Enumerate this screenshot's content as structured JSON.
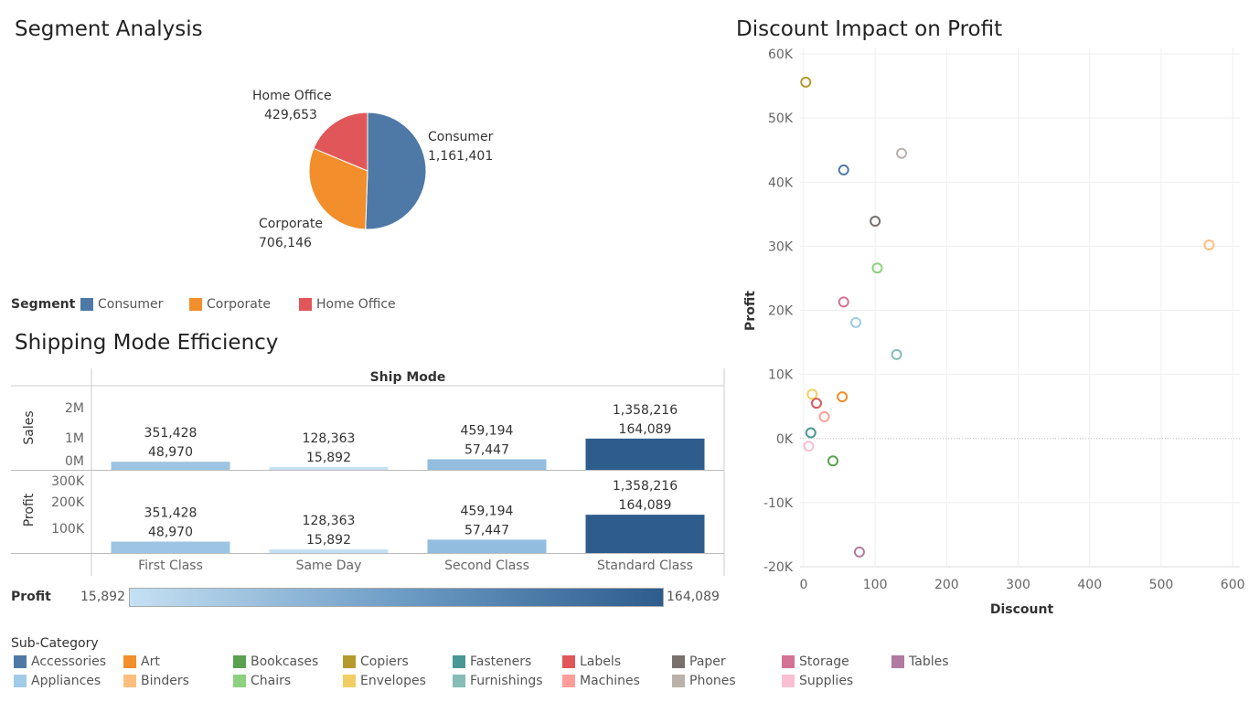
{
  "segment": {
    "title": "Segment Analysis",
    "legend_title": "Segment",
    "colors": {
      "Consumer": "#4e79a7",
      "Corporate": "#f28e2b",
      "Home Office": "#e15759"
    }
  },
  "shipping": {
    "title": "Shipping Mode Efficiency",
    "header": "Ship Mode",
    "row_labels": [
      "Sales",
      "Profit"
    ],
    "color_legend_title": "Profit",
    "color_min": "15,892",
    "color_max": "164,089"
  },
  "scatter": {
    "title": "Discount Impact on Profit"
  },
  "subcategory": {
    "title": "Sub-Category"
  },
  "chart_data": [
    {
      "type": "pie",
      "categories": [
        "Consumer",
        "Corporate",
        "Home Office"
      ],
      "values": [
        1161401,
        706146,
        429653
      ],
      "labels": [
        {
          "name": "Consumer",
          "value": "1,161,401"
        },
        {
          "name": "Corporate",
          "value": "706,146"
        },
        {
          "name": "Home Office",
          "value": "429,653"
        }
      ]
    },
    {
      "type": "bar",
      "categories": [
        "First Class",
        "Same Day",
        "Second Class",
        "Standard Class"
      ],
      "series": [
        {
          "name": "Sales",
          "values": [
            351428,
            128363,
            459194,
            1358216
          ],
          "ticks": [
            "2M",
            "1M",
            "0M"
          ],
          "tick_values": [
            2000000,
            1000000,
            0
          ]
        },
        {
          "name": "Profit",
          "values": [
            48970,
            15892,
            57447,
            164089
          ],
          "ticks": [
            "300K",
            "200K",
            "100K"
          ],
          "tick_values": [
            300000,
            200000,
            100000
          ]
        }
      ],
      "sales_labels": [
        "351,428",
        "128,363",
        "459,194",
        "1,358,216"
      ],
      "profit_labels": [
        "48,970",
        "15,892",
        "57,447",
        "164,089"
      ],
      "color_by": "Profit"
    },
    {
      "type": "scatter",
      "xlabel": "Discount",
      "ylabel": "Profit",
      "xlim": [
        -5,
        610
      ],
      "ylim": [
        -20000,
        61000
      ],
      "xticks": [
        0,
        100,
        200,
        300,
        400,
        500,
        600
      ],
      "yticks": [
        60000,
        50000,
        40000,
        30000,
        20000,
        10000,
        0,
        -10000,
        -20000
      ],
      "ytick_labels": [
        "60K",
        "50K",
        "40K",
        "30K",
        "20K",
        "10K",
        "0K",
        "-10K",
        "-20K"
      ],
      "points": [
        {
          "name": "Copiers",
          "x": 3,
          "y": 55600
        },
        {
          "name": "Phones",
          "x": 137,
          "y": 44500
        },
        {
          "name": "Accessories",
          "x": 56,
          "y": 41900
        },
        {
          "name": "Paper",
          "x": 100,
          "y": 33900
        },
        {
          "name": "Binders",
          "x": 567,
          "y": 30200
        },
        {
          "name": "Chairs",
          "x": 103,
          "y": 26600
        },
        {
          "name": "Storage",
          "x": 56,
          "y": 21300
        },
        {
          "name": "Appliances",
          "x": 73,
          "y": 18100
        },
        {
          "name": "Furnishings",
          "x": 130,
          "y": 13100
        },
        {
          "name": "Envelopes",
          "x": 12,
          "y": 6900
        },
        {
          "name": "Art",
          "x": 54,
          "y": 6500
        },
        {
          "name": "Labels",
          "x": 18,
          "y": 5500
        },
        {
          "name": "Machines",
          "x": 29,
          "y": 3400
        },
        {
          "name": "Fasteners",
          "x": 10,
          "y": 900
        },
        {
          "name": "Supplies",
          "x": 7,
          "y": -1200
        },
        {
          "name": "Bookcases",
          "x": 41,
          "y": -3500
        },
        {
          "name": "Tables",
          "x": 78,
          "y": -17700
        }
      ]
    }
  ],
  "subcategory_legend": [
    {
      "name": "Accessories",
      "color": "#4e79a7"
    },
    {
      "name": "Appliances",
      "color": "#a0cbe8"
    },
    {
      "name": "Art",
      "color": "#f28e2b"
    },
    {
      "name": "Binders",
      "color": "#ffbe7d"
    },
    {
      "name": "Bookcases",
      "color": "#59a14f"
    },
    {
      "name": "Chairs",
      "color": "#8cd17d"
    },
    {
      "name": "Copiers",
      "color": "#b6992d"
    },
    {
      "name": "Envelopes",
      "color": "#f1ce63"
    },
    {
      "name": "Fasteners",
      "color": "#499894"
    },
    {
      "name": "Furnishings",
      "color": "#86bcb6"
    },
    {
      "name": "Labels",
      "color": "#e15759"
    },
    {
      "name": "Machines",
      "color": "#ff9d9a"
    },
    {
      "name": "Paper",
      "color": "#79706e"
    },
    {
      "name": "Phones",
      "color": "#bab0ac"
    },
    {
      "name": "Storage",
      "color": "#d37295"
    },
    {
      "name": "Supplies",
      "color": "#fabfd2"
    },
    {
      "name": "Tables",
      "color": "#b07aa1"
    }
  ]
}
